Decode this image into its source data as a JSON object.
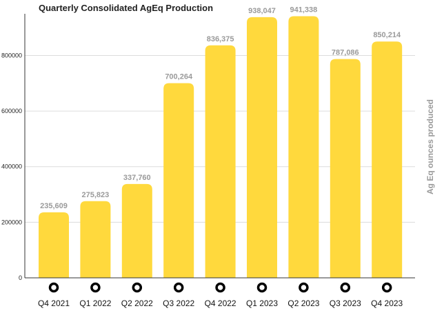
{
  "chart_data": {
    "type": "bar",
    "title": "Quarterly Consolidated AgEq Production",
    "ylabel": "Ag Eq ounces produced",
    "xlabel": "",
    "categories": [
      "Q4 2021",
      "Q1 2022",
      "Q2 2022",
      "Q3 2022",
      "Q4 2022",
      "Q1 2023",
      "Q2 2023",
      "Q3 2023",
      "Q4 2023"
    ],
    "values": [
      235609,
      275823,
      337760,
      700264,
      836375,
      938047,
      941338,
      787086,
      850214
    ],
    "value_labels": [
      "235,609",
      "275,823",
      "337,760",
      "700,264",
      "836,375",
      "938,047",
      "941,338",
      "787,086",
      "850,214"
    ],
    "yticks": [
      0,
      200000,
      400000,
      600000,
      800000
    ],
    "ytick_labels": [
      "0",
      "200000",
      "400000",
      "600000",
      "800000"
    ],
    "ylim": [
      0,
      950000
    ],
    "grid": true,
    "legend": "none",
    "colors": {
      "bar": "#FFD93D",
      "data_label": "#9a9a9a",
      "axis_label": "#9a9a9a",
      "marker": "#000000"
    },
    "x_marker_icon": "ring-marker-icon"
  }
}
